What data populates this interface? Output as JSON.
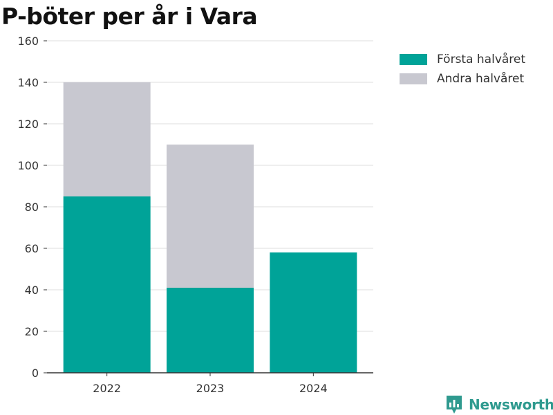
{
  "title": "P-böter per år i Vara",
  "brand": {
    "name": "Newsworthy",
    "logo_icon": "newsworthy-logo-icon",
    "color": "#2f9a8f"
  },
  "colors": {
    "grid": "#dddddd",
    "axis": "#333333"
  },
  "chart_data": {
    "type": "bar",
    "stacked": true,
    "title": "P-böter per år i Vara",
    "xlabel": "",
    "ylabel": "",
    "categories": [
      "2022",
      "2023",
      "2024"
    ],
    "series": [
      {
        "name": "Första halvåret",
        "color": "#00a398",
        "values": [
          85,
          41,
          58
        ]
      },
      {
        "name": "Andra halvåret",
        "color": "#c8c8d0",
        "values": [
          55,
          69,
          0
        ]
      }
    ],
    "ylim": [
      0,
      160
    ],
    "yticks": [
      0,
      20,
      40,
      60,
      80,
      100,
      120,
      140,
      160
    ],
    "grid": true,
    "legend": "top-right"
  }
}
